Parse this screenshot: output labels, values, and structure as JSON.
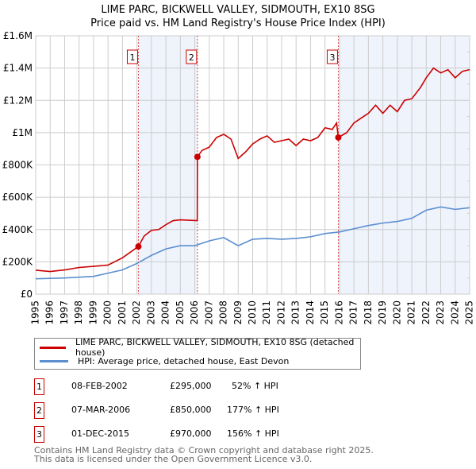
{
  "title": "LIME PARC, BICKWELL VALLEY, SIDMOUTH, EX10 8SG",
  "subtitle": "Price paid vs. HM Land Registry's House Price Index (HPI)",
  "chart_data": {
    "type": "line",
    "title": "LIME PARC, BICKWELL VALLEY, SIDMOUTH, EX10 8SG",
    "xlim": [
      1995,
      2025
    ],
    "ylim": [
      0,
      1600000
    ],
    "x_ticks": [
      "1995",
      "1996",
      "1997",
      "1998",
      "1999",
      "2000",
      "2001",
      "2002",
      "2003",
      "2004",
      "2005",
      "2006",
      "2007",
      "2008",
      "2009",
      "2010",
      "2011",
      "2012",
      "2013",
      "2014",
      "2015",
      "2016",
      "2017",
      "2018",
      "2019",
      "2020",
      "2021",
      "2022",
      "2023",
      "2024",
      "2025"
    ],
    "y_ticks": [
      {
        "v": 0,
        "l": "£0"
      },
      {
        "v": 200000,
        "l": "£200K"
      },
      {
        "v": 400000,
        "l": "£400K"
      },
      {
        "v": 600000,
        "l": "£600K"
      },
      {
        "v": 800000,
        "l": "£800K"
      },
      {
        "v": 1000000,
        "l": "£1M"
      },
      {
        "v": 1200000,
        "l": "£1.2M"
      },
      {
        "v": 1400000,
        "l": "£1.4M"
      },
      {
        "v": 1600000,
        "l": "£1.6M"
      }
    ],
    "grid": true,
    "series": [
      {
        "name": "LIME PARC, BICKWELL VALLEY, SIDMOUTH, EX10 8SG (detached house)",
        "color": "#cc0000",
        "x": [
          1995,
          1996,
          1997,
          1998,
          1999,
          2000,
          2001,
          2002.1,
          2002.5,
          2003,
          2003.5,
          2004,
          2004.5,
          2005,
          2006.17,
          2006.18,
          2006.5,
          2007,
          2007.5,
          2008,
          2008.5,
          2009,
          2009.5,
          2010,
          2010.5,
          2011,
          2011.5,
          2012,
          2012.5,
          2013,
          2013.5,
          2014,
          2014.5,
          2015,
          2015.5,
          2015.8,
          2015.92,
          2016.5,
          2017,
          2017.5,
          2018,
          2018.5,
          2019,
          2019.5,
          2020,
          2020.5,
          2021,
          2021.6,
          2022,
          2022.5,
          2023,
          2023.5,
          2024,
          2024.5,
          2025
        ],
        "y": [
          148000,
          140000,
          150000,
          165000,
          172000,
          180000,
          225000,
          295000,
          360000,
          395000,
          400000,
          430000,
          455000,
          460000,
          455000,
          850000,
          890000,
          910000,
          970000,
          990000,
          960000,
          840000,
          880000,
          930000,
          960000,
          980000,
          940000,
          950000,
          960000,
          920000,
          960000,
          950000,
          970000,
          1030000,
          1020000,
          1060000,
          970000,
          1000000,
          1060000,
          1090000,
          1120000,
          1170000,
          1120000,
          1170000,
          1130000,
          1200000,
          1210000,
          1280000,
          1340000,
          1400000,
          1370000,
          1390000,
          1340000,
          1380000,
          1390000
        ]
      },
      {
        "name": "HPI: Average price, detached house, East Devon",
        "color": "#5b8fd0",
        "x": [
          1995,
          1997,
          1999,
          2000,
          2001,
          2002,
          2003,
          2004,
          2005,
          2006,
          2007,
          2008,
          2009,
          2010,
          2011,
          2012,
          2013,
          2014,
          2015,
          2016,
          2017,
          2018,
          2019,
          2020,
          2021,
          2022,
          2023,
          2024,
          2025
        ],
        "y": [
          95000,
          100000,
          110000,
          130000,
          150000,
          190000,
          240000,
          280000,
          300000,
          300000,
          330000,
          350000,
          300000,
          340000,
          345000,
          340000,
          345000,
          355000,
          375000,
          385000,
          405000,
          425000,
          440000,
          450000,
          470000,
          520000,
          540000,
          525000,
          535000
        ]
      }
    ],
    "sales": [
      {
        "n": "1",
        "date": "08-FEB-2002",
        "x": 2002.1,
        "price": "£295,000",
        "value": 295000,
        "hpi": "52% ↑ HPI"
      },
      {
        "n": "2",
        "date": "07-MAR-2006",
        "x": 2006.18,
        "price": "£850,000",
        "value": 850000,
        "hpi": "177% ↑ HPI"
      },
      {
        "n": "3",
        "date": "01-DEC-2015",
        "x": 2015.92,
        "price": "£970,000",
        "value": 970000,
        "hpi": "156% ↑ HPI"
      }
    ]
  },
  "legend": {
    "red": "LIME PARC, BICKWELL VALLEY, SIDMOUTH, EX10 8SG (detached house)",
    "blue": "HPI: Average price, detached house, East Devon"
  },
  "footer": {
    "line1": "Contains HM Land Registry data © Crown copyright and database right 2025.",
    "line2": "This data is licensed under the Open Government Licence v3.0."
  }
}
